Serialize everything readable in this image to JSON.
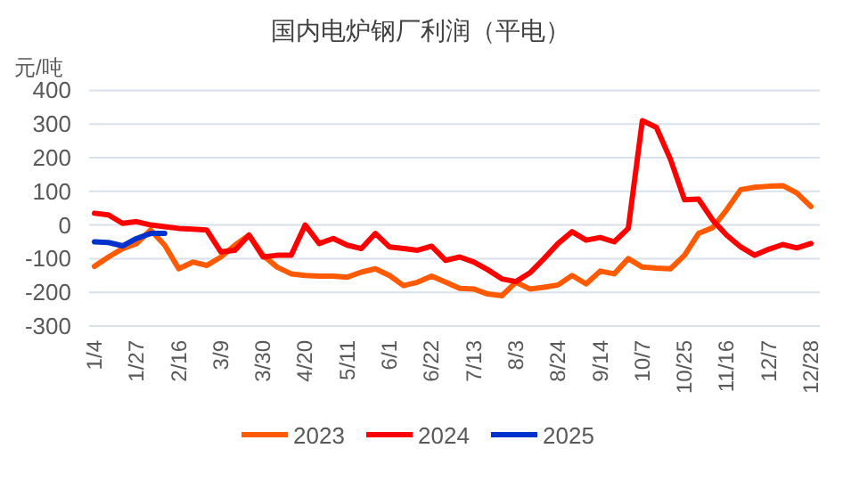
{
  "chart_data": {
    "type": "line",
    "title": "国内电炉钢厂利润（平电）",
    "ylabel": "元/吨",
    "categories": [
      "1/4",
      null,
      null,
      "1/27",
      null,
      null,
      "2/16",
      null,
      null,
      "3/9",
      null,
      null,
      "3/30",
      null,
      null,
      "4/20",
      null,
      null,
      "5/11",
      null,
      null,
      "6/1",
      null,
      null,
      "6/22",
      null,
      null,
      "7/13",
      null,
      null,
      "8/3",
      null,
      null,
      "8/24",
      null,
      null,
      "9/14",
      null,
      null,
      "10/7",
      null,
      null,
      "10/25",
      null,
      null,
      "11/16",
      null,
      null,
      "12/7",
      null,
      null,
      "12/28"
    ],
    "series": [
      {
        "name": "2023",
        "color": "#ff5a00",
        "values": [
          -123,
          -95,
          -70,
          -55,
          -15,
          -60,
          -130,
          -110,
          -120,
          -95,
          -60,
          -30,
          -90,
          -125,
          -145,
          -150,
          -152,
          -152,
          -155,
          -140,
          -130,
          -150,
          -180,
          -170,
          -152,
          -170,
          -188,
          -190,
          -205,
          -210,
          -170,
          -190,
          -185,
          -178,
          -150,
          -175,
          -137,
          -145,
          -100,
          -125,
          -128,
          -130,
          -90,
          -25,
          -8,
          45,
          105,
          112,
          115,
          117,
          95,
          55
        ]
      },
      {
        "name": "2024",
        "color": "#ff0000",
        "values": [
          35,
          30,
          5,
          10,
          0,
          -5,
          -10,
          -12,
          -15,
          -80,
          -75,
          -30,
          -95,
          -90,
          -90,
          0,
          -55,
          -40,
          -60,
          -70,
          -25,
          -65,
          -70,
          -75,
          -63,
          -105,
          -95,
          -110,
          -133,
          -160,
          -168,
          -142,
          -100,
          -55,
          -20,
          -45,
          -37,
          -50,
          -10,
          310,
          290,
          195,
          75,
          77,
          15,
          -30,
          -65,
          -90,
          -72,
          -58,
          -68,
          -55
        ]
      },
      {
        "name": "2025",
        "color": "#0033cc",
        "values": [
          -50,
          -52,
          -62,
          -40,
          -25,
          -25,
          null,
          null,
          null,
          null,
          null,
          null,
          null,
          null,
          null,
          null,
          null,
          null,
          null,
          null,
          null,
          null,
          null,
          null,
          null,
          null,
          null,
          null,
          null,
          null,
          null,
          null,
          null,
          null,
          null,
          null,
          null,
          null,
          null,
          null,
          null,
          null,
          null,
          null,
          null,
          null,
          null,
          null,
          null,
          null,
          null,
          null
        ]
      }
    ],
    "ylim": [
      -300,
      400
    ],
    "yticks": [
      -300,
      -200,
      -100,
      0,
      100,
      200,
      300,
      400
    ],
    "grid": "y",
    "legend": "bottom",
    "marker": "none",
    "line_style": "solid"
  }
}
